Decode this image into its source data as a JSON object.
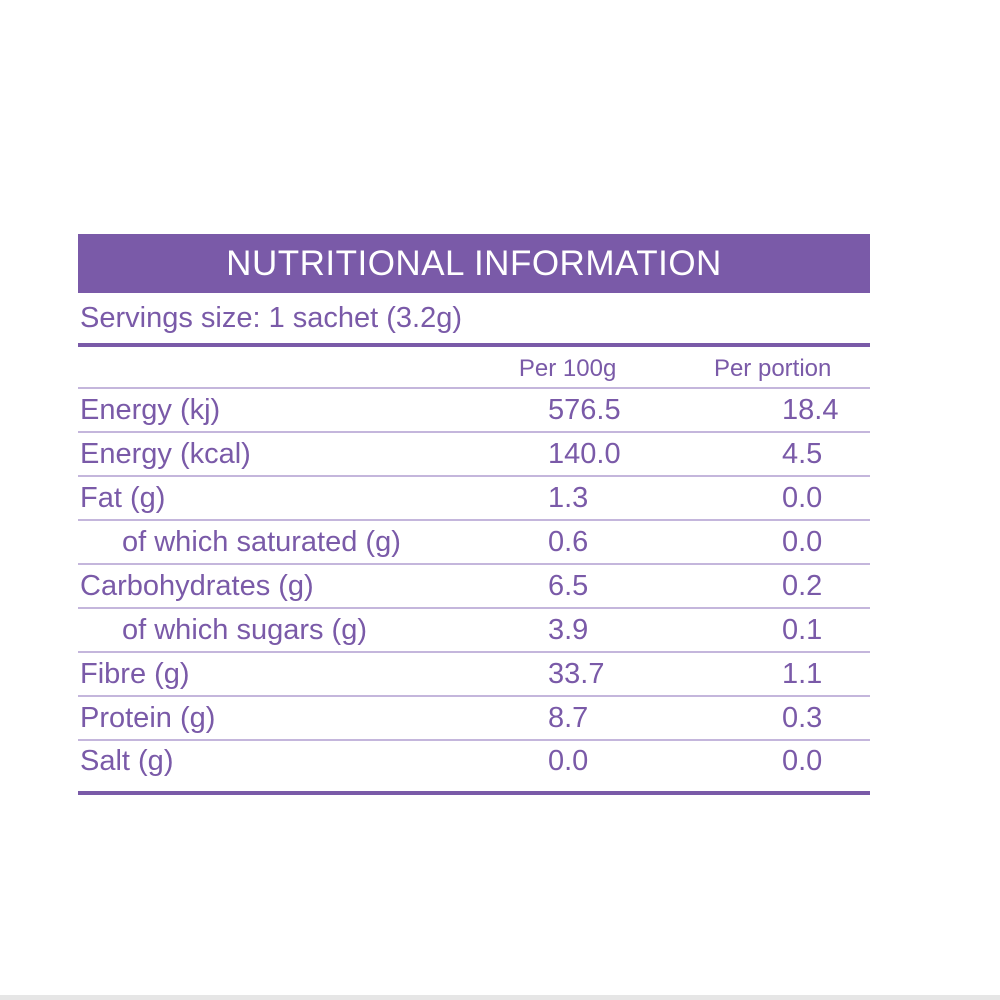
{
  "title": "NUTRITIONAL INFORMATION",
  "serving_size": "Servings size: 1 sachet (3.2g)",
  "columns": {
    "per100": "Per 100g",
    "portion": "Per portion"
  },
  "rows": [
    {
      "name": "Energy (kj)",
      "per100": "576.5",
      "portion": "18.4"
    },
    {
      "name": "Energy (kcal)",
      "per100": "140.0",
      "portion": "4.5"
    },
    {
      "name": "Fat (g)",
      "per100": "1.3",
      "portion": "0.0"
    },
    {
      "name": "of which saturated (g)",
      "per100": "0.6",
      "portion": "0.0"
    },
    {
      "name": "Carbohydrates (g)",
      "per100": "6.5",
      "portion": "0.2"
    },
    {
      "name": "of which sugars (g)",
      "per100": "3.9",
      "portion": "0.1"
    },
    {
      "name": "Fibre (g)",
      "per100": "33.7",
      "portion": "1.1"
    },
    {
      "name": "Protein (g)",
      "per100": "8.7",
      "portion": "0.3"
    },
    {
      "name": "Salt (g)",
      "per100": "0.0",
      "portion": "0.0"
    }
  ],
  "colors": {
    "accent": "#7a5aa8",
    "divider": "#c4b6dc",
    "background": "#ffffff"
  }
}
